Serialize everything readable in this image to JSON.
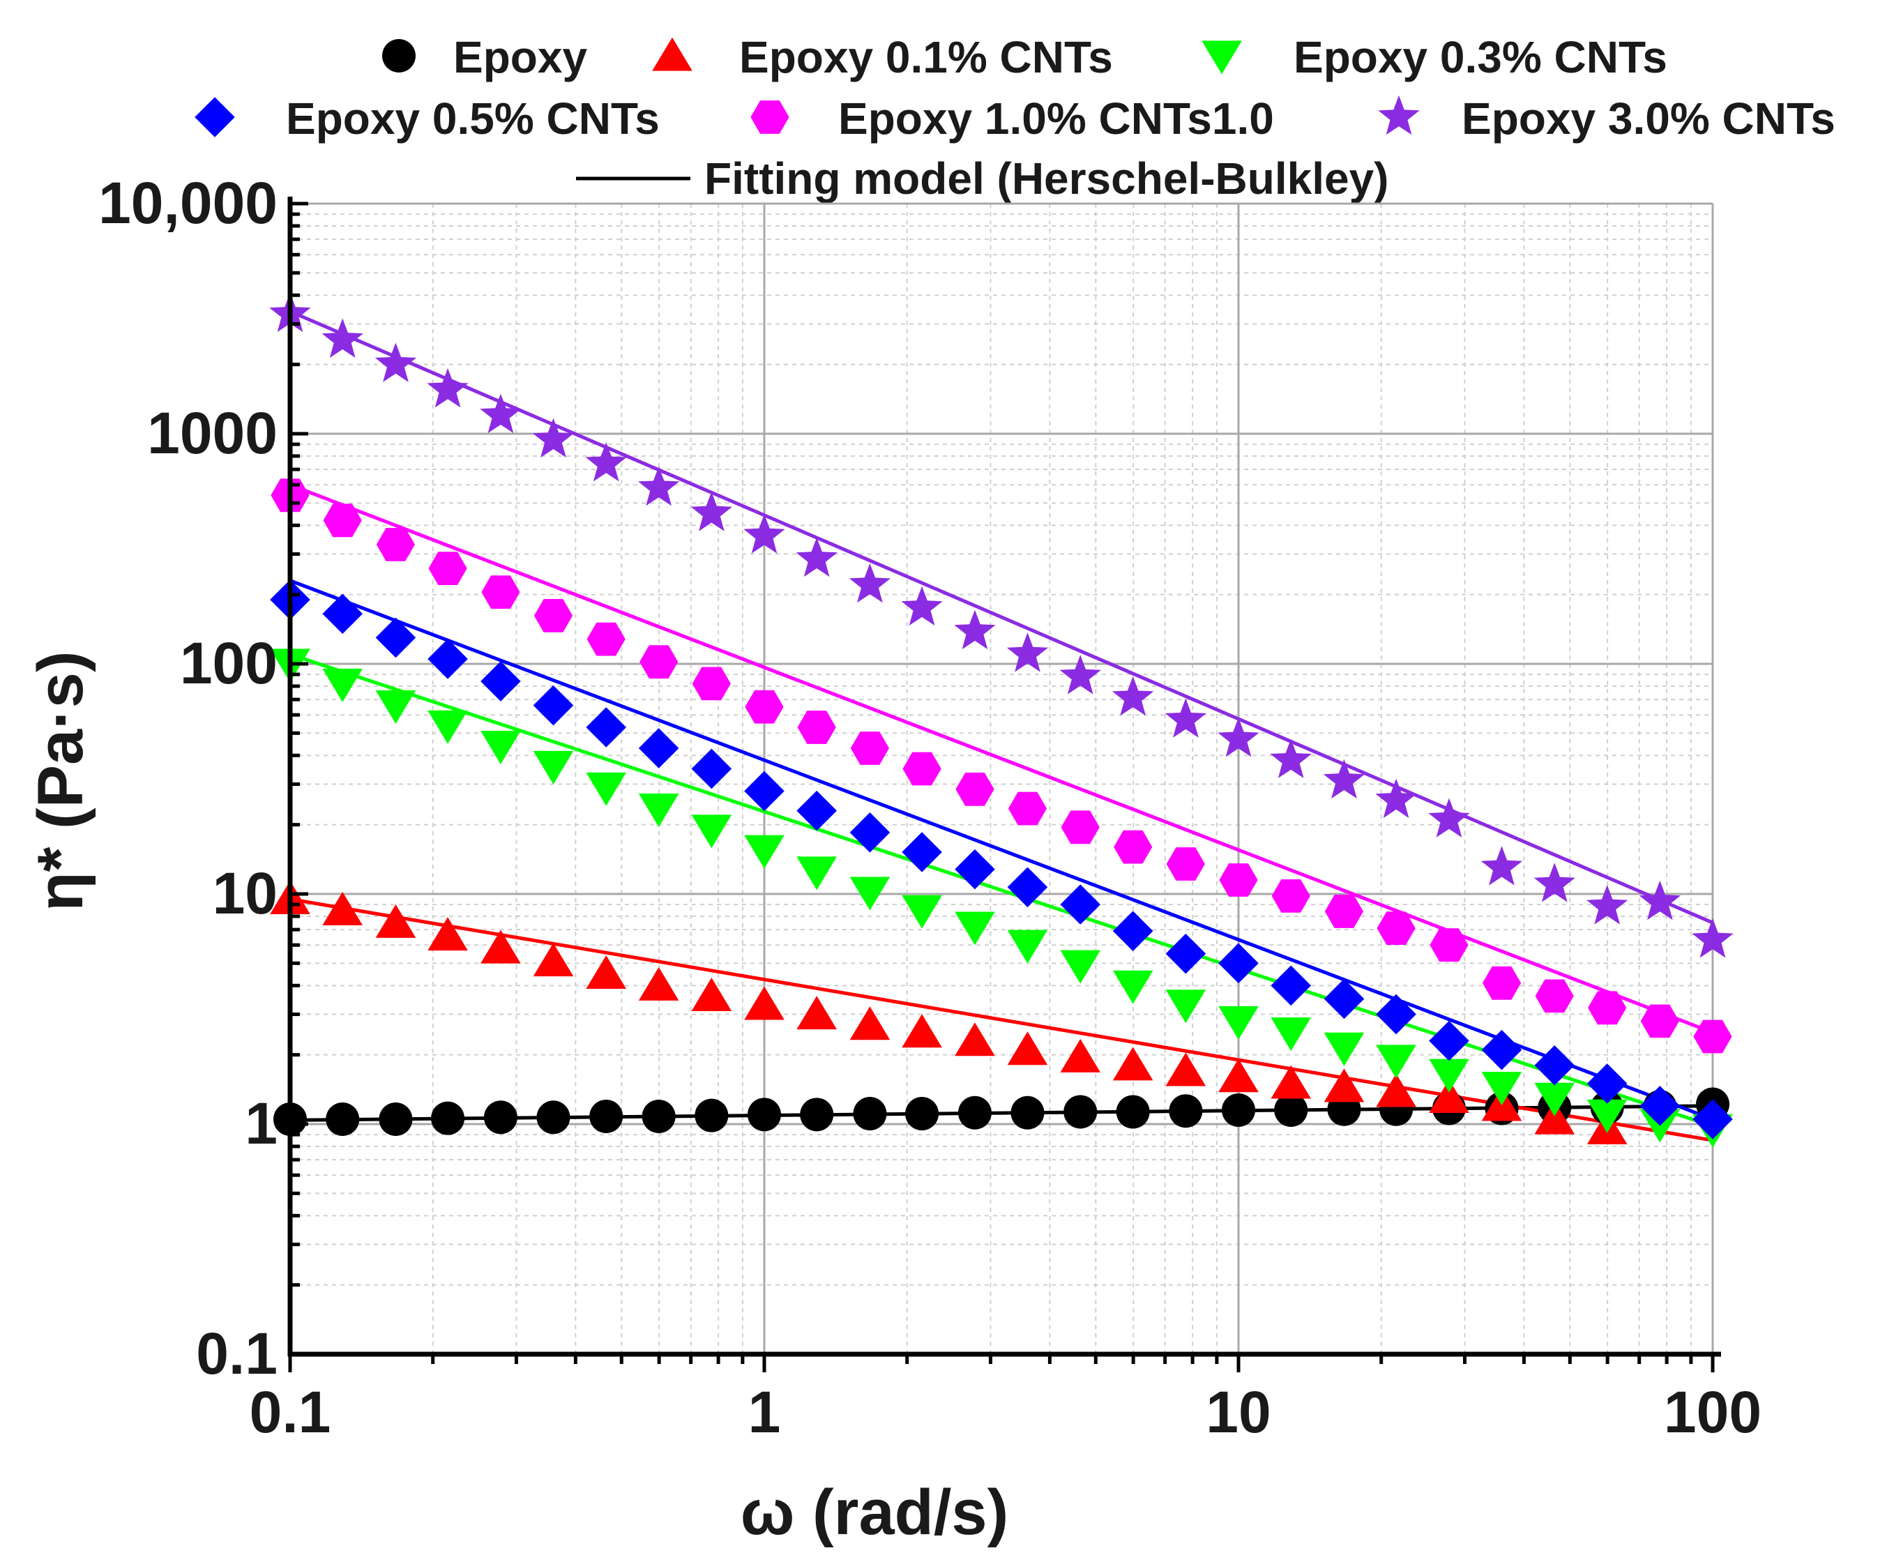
{
  "chart_data": {
    "type": "scatter",
    "xscale": "log",
    "yscale": "log",
    "xlabel": "ω (rad/s)",
    "ylabel": "η* (Pa·s)",
    "xlim": [
      0.1,
      100
    ],
    "ylim": [
      0.1,
      10000
    ],
    "grid": true,
    "legend_position": "top",
    "xticks": [
      {
        "value": 0.1,
        "label": "0.1"
      },
      {
        "value": 1,
        "label": "1"
      },
      {
        "value": 10,
        "label": "10"
      },
      {
        "value": 100,
        "label": "100"
      }
    ],
    "yticks": [
      {
        "value": 0.1,
        "label": "0.1"
      },
      {
        "value": 1,
        "label": "1"
      },
      {
        "value": 10,
        "label": "10"
      },
      {
        "value": 100,
        "label": "100"
      },
      {
        "value": 1000,
        "label": "1000"
      },
      {
        "value": 10000,
        "label": "10,000"
      }
    ],
    "x": [
      0.1,
      0.129,
      0.167,
      0.215,
      0.278,
      0.359,
      0.464,
      0.599,
      0.774,
      1.0,
      1.29,
      1.67,
      2.15,
      2.78,
      3.59,
      4.64,
      5.99,
      7.74,
      10.0,
      12.9,
      16.7,
      21.5,
      27.8,
      35.9,
      46.4,
      59.9,
      77.4,
      100
    ],
    "series": [
      {
        "name": "Epoxy",
        "color": "#000000",
        "marker": "circle",
        "values": [
          1.05,
          1.05,
          1.05,
          1.06,
          1.07,
          1.07,
          1.08,
          1.08,
          1.09,
          1.1,
          1.1,
          1.11,
          1.11,
          1.12,
          1.12,
          1.13,
          1.13,
          1.14,
          1.15,
          1.15,
          1.16,
          1.16,
          1.17,
          1.17,
          1.18,
          1.18,
          1.19,
          1.22
        ],
        "fit": [
          1.04,
          1.2
        ]
      },
      {
        "name": "Epoxy 0.1% CNTs",
        "color": "#ff0000",
        "marker": "triangle-up",
        "values": [
          9.5,
          8.5,
          7.5,
          6.6,
          5.8,
          5.1,
          4.5,
          4.0,
          3.6,
          3.3,
          3.0,
          2.7,
          2.5,
          2.3,
          2.1,
          1.95,
          1.8,
          1.7,
          1.6,
          1.5,
          1.45,
          1.38,
          1.3,
          1.2,
          1.05,
          0.95,
          null,
          null
        ],
        "fit": [
          9.5,
          0.85
        ]
      },
      {
        "name": "Epoxy 0.3% CNTs",
        "color": "#00ff00",
        "marker": "triangle-down",
        "values": [
          100,
          82,
          66,
          54,
          44,
          36,
          29,
          23.5,
          19,
          15.5,
          12.5,
          10.2,
          8.5,
          7.2,
          6.0,
          4.9,
          4.0,
          3.3,
          2.8,
          2.5,
          2.15,
          1.9,
          1.65,
          1.45,
          1.3,
          1.1,
          1.0,
          0.95
        ],
        "fit": [
          110,
          0.98
        ]
      },
      {
        "name": "Epoxy 0.5% CNTs",
        "color": "#0000ff",
        "marker": "diamond",
        "values": [
          190,
          165,
          130,
          105,
          84,
          66,
          53,
          43,
          35,
          28,
          23,
          18.5,
          15.2,
          12.8,
          10.7,
          9.0,
          6.9,
          5.5,
          5.0,
          4.0,
          3.5,
          3.0,
          2.3,
          2.1,
          1.8,
          1.5,
          1.2,
          1.05
        ],
        "fit": [
          230,
          1.05
        ]
      },
      {
        "name": "Epoxy 1.0% CNTs1.0",
        "color": "#ff00ff",
        "marker": "hexagon",
        "values": [
          540,
          420,
          330,
          260,
          205,
          162,
          128,
          102,
          82,
          65,
          53,
          43,
          35,
          28.5,
          23.5,
          19.5,
          16.0,
          13.5,
          11.5,
          9.8,
          8.4,
          7.1,
          6.0,
          4.1,
          3.6,
          3.2,
          2.8,
          2.4
        ],
        "fit": [
          600,
          2.5
        ]
      },
      {
        "name": "Epoxy 3.0% CNTs",
        "color": "#8b2be2",
        "marker": "star",
        "values": [
          3300,
          2550,
          2000,
          1550,
          1200,
          940,
          740,
          580,
          450,
          360,
          285,
          220,
          175,
          138,
          110,
          88,
          71,
          57,
          47,
          38,
          31,
          25.5,
          21,
          13,
          11,
          8.8,
          9.2,
          6.3
        ],
        "fit": [
          3400,
          7.5
        ]
      }
    ],
    "fit_legend": "Fitting model (Herschel-Bulkley)"
  }
}
